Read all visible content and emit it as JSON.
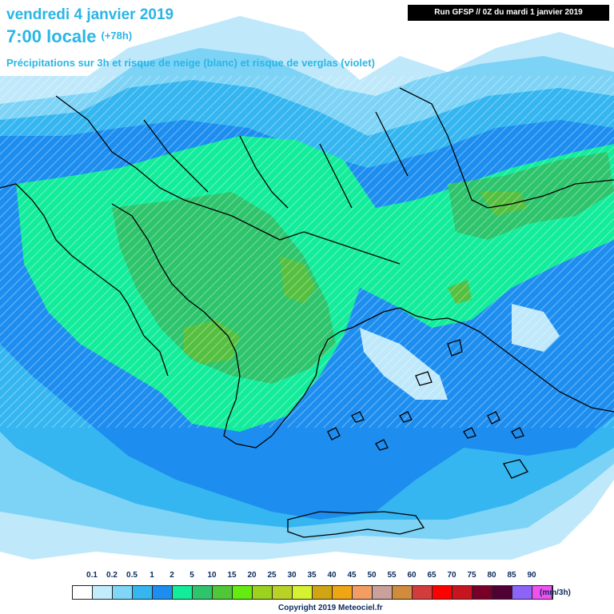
{
  "header": {
    "date": "vendredi 4 janvier 2019",
    "time": "7:00 locale",
    "lead": "(+78h)",
    "subtitle": "Précipitations sur 3h et risque de neige (blanc) et risque de verglas (violet)",
    "run": "Run GFSP // 0Z du mardi 1 janvier 2019"
  },
  "legend": {
    "ticks": [
      "0.1",
      "0.2",
      "0.5",
      "1",
      "2",
      "5",
      "10",
      "15",
      "20",
      "25",
      "30",
      "35",
      "40",
      "45",
      "50",
      "55",
      "60",
      "65",
      "70",
      "75",
      "80",
      "85",
      "90"
    ],
    "unit": "(mm/3h)",
    "colors": [
      "#ffffff",
      "#c3ecfb",
      "#7fd6f6",
      "#35b6f0",
      "#1d8ef0",
      "#13ec9b",
      "#2ec46c",
      "#4fc838",
      "#64ec10",
      "#9ad21e",
      "#b8d228",
      "#d6f032",
      "#cfa514",
      "#f0a514",
      "#f39c64",
      "#c9a09b",
      "#d08c3c",
      "#d23c3c",
      "#ff0000",
      "#c8141e",
      "#780028",
      "#500032",
      "#8c64fa",
      "#f050f0"
    ]
  },
  "copyright": "Copyright 2019 Meteociel.fr",
  "map_colors": {
    "background": "#ffffff",
    "very_light": "#bfe9fb",
    "light": "#7dd3f6",
    "cyan": "#35b6f0",
    "blue": "#1d8ef0",
    "green": "#13ec9b",
    "dark_green": "#2ec46c",
    "olive": "#55c040",
    "snow_hatch": "#e6f6fb",
    "coast": "#000000"
  }
}
